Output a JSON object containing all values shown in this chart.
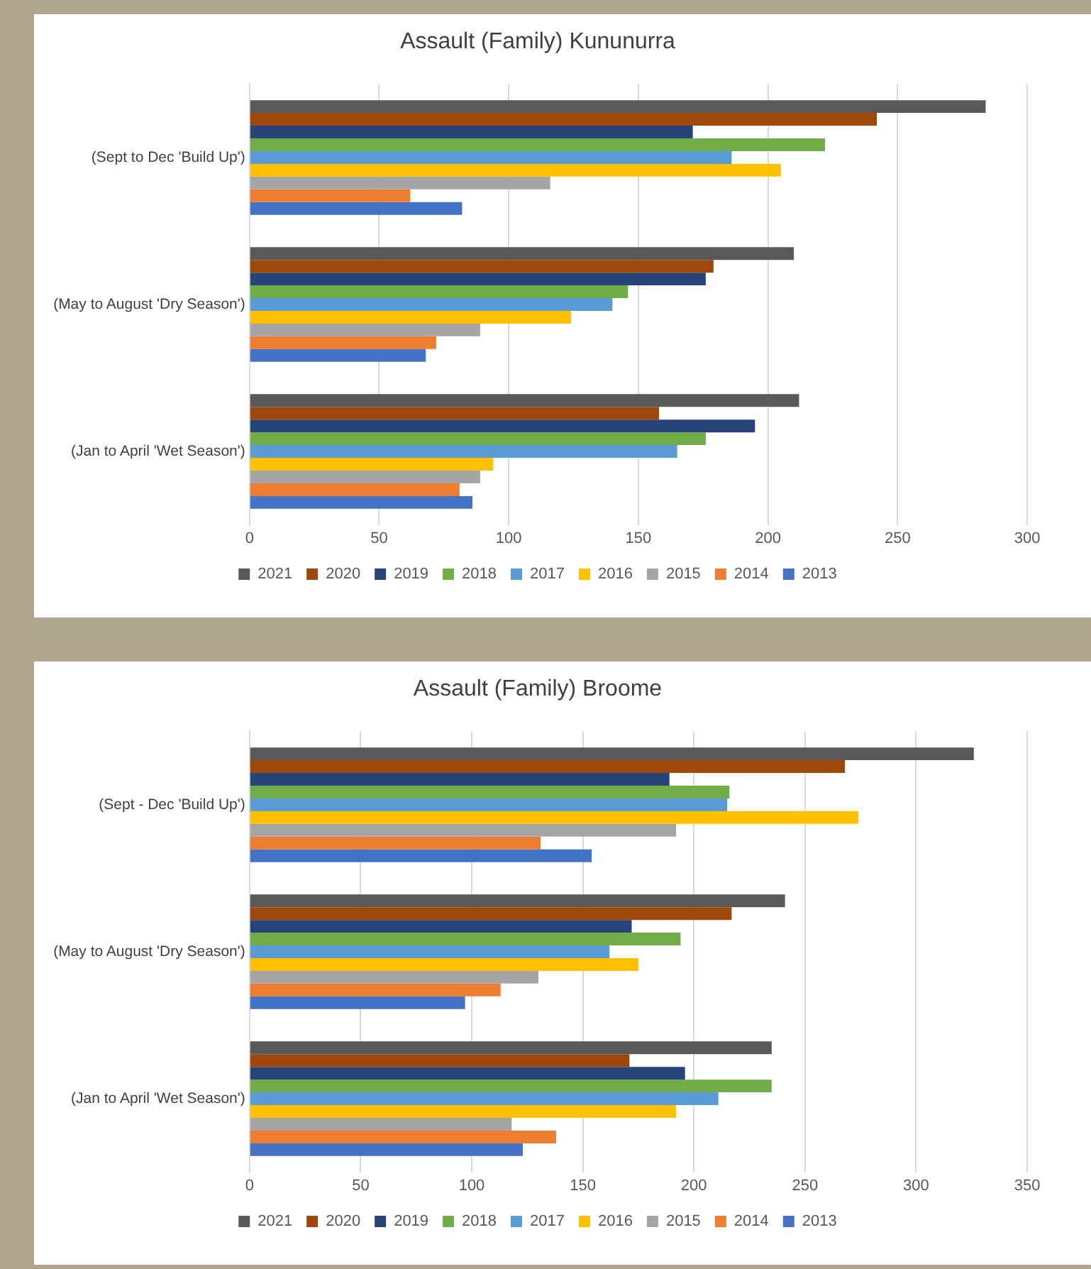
{
  "chart_data": [
    {
      "type": "bar",
      "orientation": "horizontal",
      "title": "Assault (Family) Kununurra",
      "categories": [
        "(Sept to Dec 'Build Up')",
        "(May to August 'Dry Season')",
        "(Jan to April 'Wet Season')"
      ],
      "xlim": [
        0,
        300
      ],
      "xticks": [
        0,
        50,
        100,
        150,
        200,
        250,
        300
      ],
      "grid": "x",
      "legend": "bottom",
      "series": [
        {
          "name": "2021",
          "color": "#595959",
          "values": [
            284,
            210,
            212
          ]
        },
        {
          "name": "2020",
          "color": "#9e480e",
          "values": [
            242,
            179,
            158
          ]
        },
        {
          "name": "2019",
          "color": "#264478",
          "values": [
            171,
            176,
            195
          ]
        },
        {
          "name": "2018",
          "color": "#70ad47",
          "values": [
            222,
            146,
            176
          ]
        },
        {
          "name": "2017",
          "color": "#5b9bd5",
          "values": [
            186,
            140,
            165
          ]
        },
        {
          "name": "2016",
          "color": "#ffc000",
          "values": [
            205,
            124,
            94
          ]
        },
        {
          "name": "2015",
          "color": "#a5a5a5",
          "values": [
            116,
            89,
            89
          ]
        },
        {
          "name": "2014",
          "color": "#ed7d31",
          "values": [
            62,
            72,
            81
          ]
        },
        {
          "name": "2013",
          "color": "#4472c4",
          "values": [
            82,
            68,
            86
          ]
        }
      ]
    },
    {
      "type": "bar",
      "orientation": "horizontal",
      "title": "Assault (Family) Broome",
      "categories": [
        "(Sept - Dec 'Build Up')",
        "(May to August 'Dry Season')",
        "(Jan to April 'Wet Season')"
      ],
      "xlim": [
        0,
        350
      ],
      "xticks": [
        0,
        50,
        100,
        150,
        200,
        250,
        300,
        350
      ],
      "grid": "x",
      "legend": "bottom",
      "series": [
        {
          "name": "2021",
          "color": "#595959",
          "values": [
            326,
            241,
            235
          ]
        },
        {
          "name": "2020",
          "color": "#9e480e",
          "values": [
            268,
            217,
            171
          ]
        },
        {
          "name": "2019",
          "color": "#264478",
          "values": [
            189,
            172,
            196
          ]
        },
        {
          "name": "2018",
          "color": "#70ad47",
          "values": [
            216,
            194,
            235
          ]
        },
        {
          "name": "2017",
          "color": "#5b9bd5",
          "values": [
            215,
            162,
            211
          ]
        },
        {
          "name": "2016",
          "color": "#ffc000",
          "values": [
            274,
            175,
            192
          ]
        },
        {
          "name": "2015",
          "color": "#a5a5a5",
          "values": [
            192,
            130,
            118
          ]
        },
        {
          "name": "2014",
          "color": "#ed7d31",
          "values": [
            131,
            113,
            138
          ]
        },
        {
          "name": "2013",
          "color": "#4472c4",
          "values": [
            154,
            97,
            123
          ]
        }
      ]
    }
  ]
}
